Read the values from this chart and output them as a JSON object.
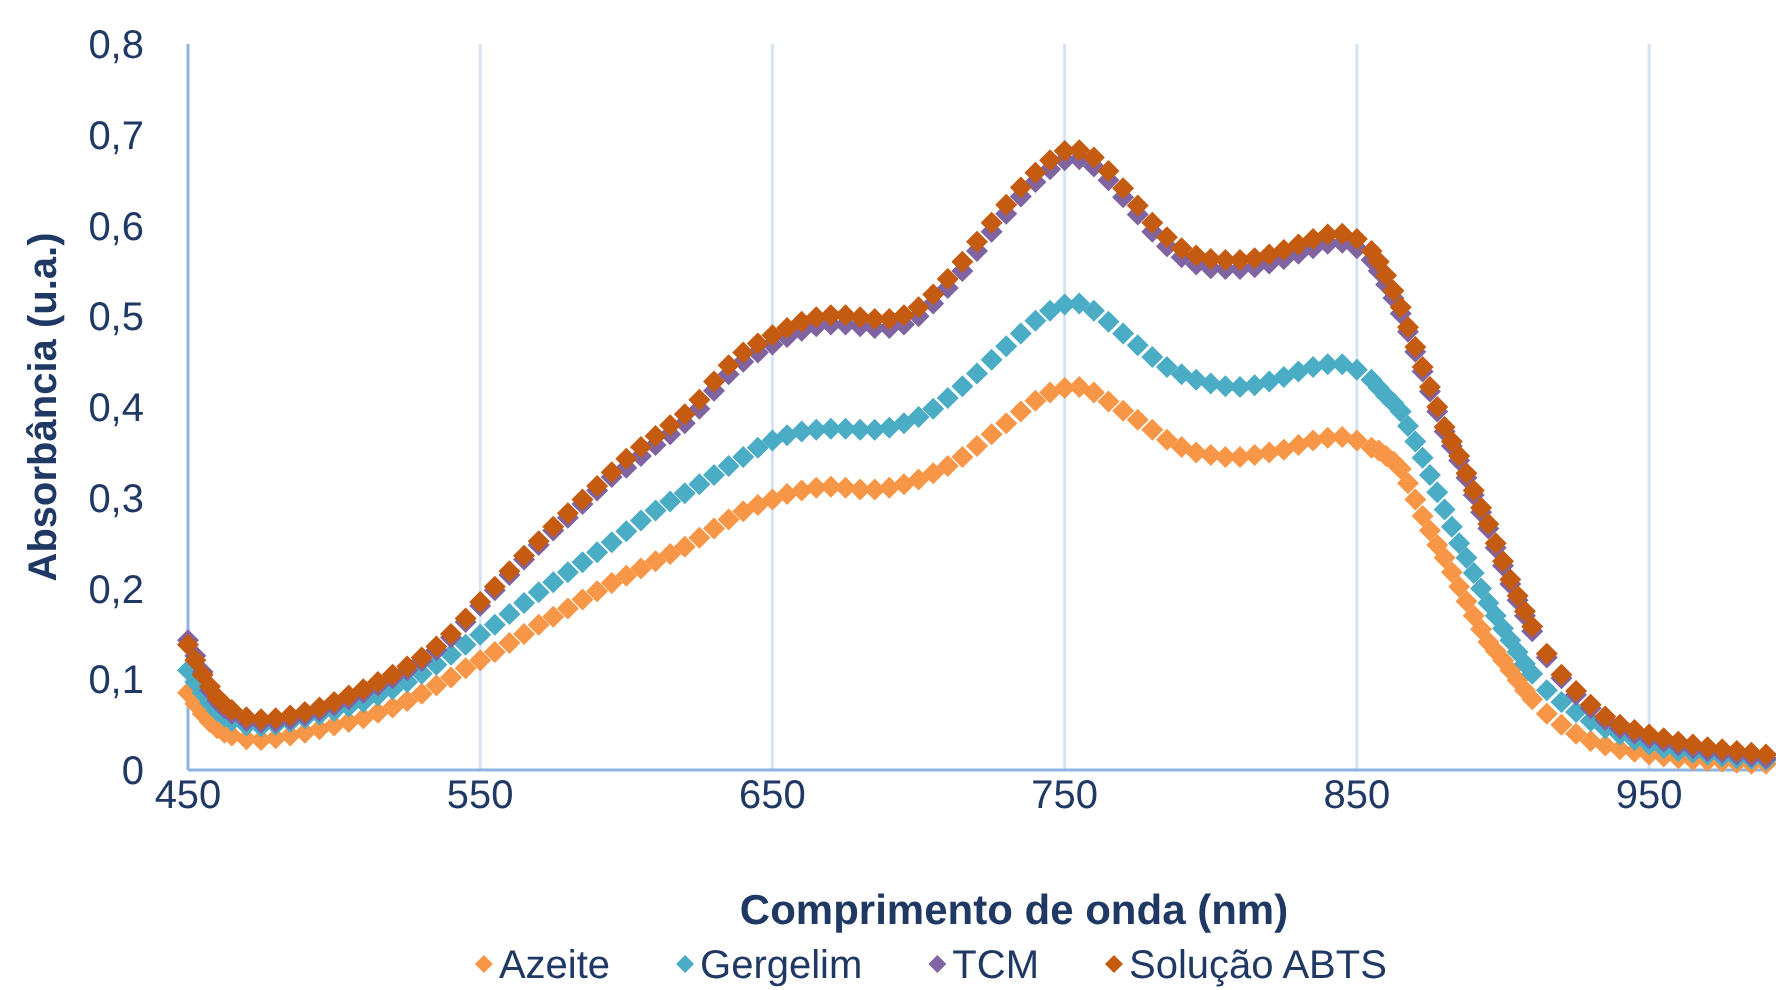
{
  "chart_data": {
    "type": "scatter",
    "marker": "diamond",
    "xlabel": "Comprimento de onda (nm)",
    "ylabel": "Absorbância (u.a.)",
    "xlim": [
      450,
      990
    ],
    "xticks": [
      450,
      550,
      650,
      750,
      850,
      950
    ],
    "ylim": [
      0,
      0.8
    ],
    "yticks": [
      0,
      {
        "value": 0.1,
        "label": "0,1"
      },
      {
        "value": 0.2,
        "label": "0,2"
      },
      {
        "value": 0.3,
        "label": "0,3"
      },
      {
        "value": 0.4,
        "label": "0,4"
      },
      {
        "value": 0.5,
        "label": "0,5"
      },
      {
        "value": 0.6,
        "label": "0,6"
      },
      {
        "value": 0.7,
        "label": "0,7"
      },
      {
        "value": 0.8,
        "label": "0,8"
      }
    ],
    "grid": "x",
    "legend": "bottom",
    "x": [
      450,
      452.5,
      455,
      457.5,
      460,
      462.5,
      465,
      470,
      475,
      480,
      485,
      490,
      495,
      500,
      505,
      510,
      515,
      520,
      525,
      530,
      535,
      540,
      545,
      550,
      555,
      560,
      565,
      570,
      575,
      580,
      585,
      590,
      595,
      600,
      605,
      610,
      615,
      620,
      625,
      630,
      635,
      640,
      645,
      650,
      655,
      660,
      665,
      670,
      675,
      680,
      685,
      690,
      695,
      700,
      705,
      710,
      715,
      720,
      725,
      730,
      735,
      740,
      745,
      750,
      755,
      760,
      765,
      770,
      775,
      780,
      785,
      790,
      795,
      800,
      805,
      810,
      815,
      820,
      825,
      830,
      835,
      840,
      845,
      850,
      855,
      857.5,
      860,
      862.5,
      865,
      867.5,
      870,
      872.5,
      875,
      877.5,
      880,
      882.5,
      885,
      887.5,
      890,
      892.5,
      895,
      897.5,
      900,
      902.5,
      905,
      907.5,
      910,
      915,
      920,
      925,
      930,
      935,
      940,
      945,
      950,
      955,
      960,
      965,
      970,
      975,
      980,
      985,
      990
    ],
    "series": [
      {
        "name": "Azeite",
        "color": "#f79646",
        "values": [
          0.085,
          0.073,
          0.062,
          0.053,
          0.046,
          0.041,
          0.038,
          0.034,
          0.033,
          0.035,
          0.038,
          0.041,
          0.045,
          0.049,
          0.053,
          0.057,
          0.063,
          0.069,
          0.076,
          0.084,
          0.093,
          0.102,
          0.112,
          0.121,
          0.13,
          0.14,
          0.15,
          0.16,
          0.169,
          0.178,
          0.188,
          0.197,
          0.206,
          0.214,
          0.222,
          0.23,
          0.238,
          0.246,
          0.256,
          0.266,
          0.276,
          0.285,
          0.292,
          0.298,
          0.304,
          0.308,
          0.311,
          0.312,
          0.311,
          0.309,
          0.309,
          0.311,
          0.315,
          0.32,
          0.327,
          0.335,
          0.345,
          0.357,
          0.37,
          0.382,
          0.395,
          0.407,
          0.416,
          0.421,
          0.422,
          0.416,
          0.406,
          0.396,
          0.386,
          0.375,
          0.364,
          0.356,
          0.35,
          0.347,
          0.345,
          0.345,
          0.347,
          0.35,
          0.353,
          0.358,
          0.363,
          0.366,
          0.367,
          0.363,
          0.355,
          0.352,
          0.346,
          0.34,
          0.332,
          0.316,
          0.298,
          0.28,
          0.264,
          0.248,
          0.234,
          0.218,
          0.202,
          0.186,
          0.17,
          0.155,
          0.141,
          0.131,
          0.121,
          0.11,
          0.099,
          0.088,
          0.078,
          0.062,
          0.05,
          0.04,
          0.032,
          0.027,
          0.023,
          0.02,
          0.017,
          0.015,
          0.013,
          0.011,
          0.01,
          0.009,
          0.008,
          0.007,
          0.007
        ]
      },
      {
        "name": "Gergelim",
        "color": "#4bacc6",
        "values": [
          0.11,
          0.097,
          0.085,
          0.074,
          0.065,
          0.059,
          0.054,
          0.049,
          0.048,
          0.05,
          0.053,
          0.057,
          0.061,
          0.065,
          0.07,
          0.075,
          0.082,
          0.089,
          0.097,
          0.106,
          0.116,
          0.127,
          0.138,
          0.149,
          0.16,
          0.172,
          0.184,
          0.196,
          0.207,
          0.218,
          0.229,
          0.24,
          0.251,
          0.263,
          0.275,
          0.286,
          0.296,
          0.305,
          0.315,
          0.325,
          0.335,
          0.345,
          0.355,
          0.363,
          0.369,
          0.373,
          0.375,
          0.376,
          0.376,
          0.375,
          0.375,
          0.377,
          0.382,
          0.389,
          0.398,
          0.41,
          0.423,
          0.437,
          0.452,
          0.467,
          0.481,
          0.495,
          0.506,
          0.513,
          0.514,
          0.506,
          0.494,
          0.481,
          0.468,
          0.455,
          0.444,
          0.436,
          0.43,
          0.426,
          0.423,
          0.422,
          0.424,
          0.428,
          0.433,
          0.439,
          0.444,
          0.447,
          0.447,
          0.441,
          0.43,
          0.421,
          0.412,
          0.404,
          0.395,
          0.379,
          0.362,
          0.344,
          0.325,
          0.306,
          0.287,
          0.268,
          0.25,
          0.234,
          0.217,
          0.2,
          0.184,
          0.17,
          0.156,
          0.143,
          0.13,
          0.117,
          0.106,
          0.088,
          0.075,
          0.064,
          0.054,
          0.046,
          0.039,
          0.033,
          0.028,
          0.024,
          0.021,
          0.019,
          0.017,
          0.015,
          0.013,
          0.012,
          0.011
        ]
      },
      {
        "name": "TCM",
        "color": "#8064a2",
        "values": [
          0.143,
          0.126,
          0.108,
          0.088,
          0.076,
          0.068,
          0.062,
          0.054,
          0.052,
          0.053,
          0.056,
          0.06,
          0.065,
          0.071,
          0.078,
          0.085,
          0.093,
          0.101,
          0.11,
          0.12,
          0.132,
          0.146,
          0.163,
          0.181,
          0.198,
          0.215,
          0.232,
          0.248,
          0.264,
          0.278,
          0.293,
          0.308,
          0.323,
          0.333,
          0.346,
          0.358,
          0.37,
          0.382,
          0.398,
          0.418,
          0.436,
          0.45,
          0.46,
          0.469,
          0.477,
          0.484,
          0.489,
          0.491,
          0.491,
          0.489,
          0.487,
          0.487,
          0.491,
          0.5,
          0.514,
          0.531,
          0.55,
          0.572,
          0.593,
          0.613,
          0.632,
          0.648,
          0.662,
          0.672,
          0.673,
          0.665,
          0.65,
          0.631,
          0.612,
          0.593,
          0.577,
          0.565,
          0.557,
          0.553,
          0.552,
          0.552,
          0.554,
          0.558,
          0.563,
          0.569,
          0.575,
          0.58,
          0.581,
          0.575,
          0.562,
          0.55,
          0.535,
          0.52,
          0.503,
          0.483,
          0.461,
          0.439,
          0.417,
          0.395,
          0.373,
          0.357,
          0.341,
          0.322,
          0.303,
          0.284,
          0.266,
          0.245,
          0.225,
          0.205,
          0.187,
          0.17,
          0.153,
          0.124,
          0.101,
          0.083,
          0.068,
          0.055,
          0.046,
          0.04,
          0.035,
          0.031,
          0.027,
          0.024,
          0.021,
          0.019,
          0.017,
          0.015,
          0.013
        ]
      },
      {
        "name": "Solução ABTS",
        "color": "#c55a11",
        "values": [
          0.138,
          0.121,
          0.105,
          0.092,
          0.08,
          0.072,
          0.066,
          0.058,
          0.056,
          0.057,
          0.06,
          0.064,
          0.069,
          0.075,
          0.082,
          0.089,
          0.097,
          0.105,
          0.114,
          0.124,
          0.136,
          0.15,
          0.167,
          0.185,
          0.202,
          0.219,
          0.236,
          0.252,
          0.268,
          0.283,
          0.298,
          0.313,
          0.328,
          0.343,
          0.356,
          0.368,
          0.38,
          0.392,
          0.408,
          0.428,
          0.446,
          0.46,
          0.47,
          0.479,
          0.487,
          0.494,
          0.499,
          0.501,
          0.501,
          0.499,
          0.497,
          0.497,
          0.501,
          0.51,
          0.524,
          0.541,
          0.56,
          0.582,
          0.603,
          0.623,
          0.642,
          0.658,
          0.672,
          0.682,
          0.683,
          0.675,
          0.66,
          0.641,
          0.622,
          0.603,
          0.587,
          0.575,
          0.567,
          0.563,
          0.562,
          0.562,
          0.564,
          0.568,
          0.573,
          0.579,
          0.585,
          0.59,
          0.591,
          0.585,
          0.572,
          0.56,
          0.545,
          0.528,
          0.51,
          0.488,
          0.466,
          0.444,
          0.422,
          0.4,
          0.378,
          0.362,
          0.346,
          0.327,
          0.308,
          0.289,
          0.271,
          0.25,
          0.23,
          0.21,
          0.192,
          0.175,
          0.158,
          0.128,
          0.105,
          0.087,
          0.072,
          0.059,
          0.05,
          0.044,
          0.039,
          0.035,
          0.031,
          0.028,
          0.025,
          0.023,
          0.021,
          0.019,
          0.017
        ]
      }
    ]
  }
}
